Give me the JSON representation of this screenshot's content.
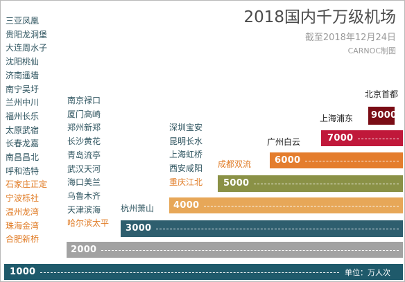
{
  "title": "2018国内千万级机场",
  "subtitle": "截至2018年12月24日",
  "credit": "CARNOC制图",
  "unit_label": "单位：万人次",
  "colors": {
    "bar_1000": "#1f5a6b",
    "bar_2000": "#a2a2a2",
    "bar_3000": "#2e5e6e",
    "bar_4000": "#e7a758",
    "bar_5000": "#8a9146",
    "bar_6000": "#e47d2d",
    "bar_7000": "#c0183a",
    "bar_9000": "#7a0d15",
    "text_dark": "#2f5560",
    "text_orange": "#e07b25",
    "text_black": "#222222"
  },
  "chart_data": {
    "type": "bar",
    "title": "2018国内千万级机场",
    "subtitle": "截至2018年12月24日",
    "unit": "单位：万人次",
    "tiers": [
      {
        "value": 1000,
        "label": "1000",
        "airports": [
          {
            "name": "三亚凤凰",
            "highlight": false
          },
          {
            "name": "贵阳龙洞堡",
            "highlight": false
          },
          {
            "name": "大连周水子",
            "highlight": false
          },
          {
            "name": "沈阳桃仙",
            "highlight": false
          },
          {
            "name": "济南遥墙",
            "highlight": false
          },
          {
            "name": "南宁吴圩",
            "highlight": false
          },
          {
            "name": "兰州中川",
            "highlight": false
          },
          {
            "name": "福州长乐",
            "highlight": false
          },
          {
            "name": "太原武宿",
            "highlight": false
          },
          {
            "name": "长春龙嘉",
            "highlight": false
          },
          {
            "name": "南昌昌北",
            "highlight": false
          },
          {
            "name": "呼和浩特",
            "highlight": false
          },
          {
            "name": "石家庄正定",
            "highlight": true
          },
          {
            "name": "宁波栎社",
            "highlight": true
          },
          {
            "name": "温州龙湾",
            "highlight": true
          },
          {
            "name": "珠海金湾",
            "highlight": true
          },
          {
            "name": "合肥新桥",
            "highlight": true
          }
        ]
      },
      {
        "value": 2000,
        "label": "2000",
        "airports": [
          {
            "name": "南京禄口",
            "highlight": false
          },
          {
            "name": "厦门高崎",
            "highlight": false
          },
          {
            "name": "郑州新郑",
            "highlight": false
          },
          {
            "name": "长沙黄花",
            "highlight": false
          },
          {
            "name": "青岛流亭",
            "highlight": false
          },
          {
            "name": "武汉天河",
            "highlight": false
          },
          {
            "name": "海口美兰",
            "highlight": false
          },
          {
            "name": "乌鲁木齐",
            "highlight": false
          },
          {
            "name": "天津滨海",
            "highlight": false
          },
          {
            "name": "哈尔滨太平",
            "highlight": true
          }
        ]
      },
      {
        "value": 3000,
        "label": "3000",
        "airports": [
          {
            "name": "杭州萧山",
            "highlight": false
          }
        ]
      },
      {
        "value": 4000,
        "label": "4000",
        "airports": [
          {
            "name": "深圳宝安",
            "highlight": false
          },
          {
            "name": "昆明长水",
            "highlight": false
          },
          {
            "name": "上海虹桥",
            "highlight": false
          },
          {
            "name": "西安咸阳",
            "highlight": false
          },
          {
            "name": "重庆江北",
            "highlight": true
          }
        ]
      },
      {
        "value": 5000,
        "label": "5000",
        "airports": [
          {
            "name": "成都双流",
            "highlight": true
          }
        ]
      },
      {
        "value": 6000,
        "label": "6000",
        "airports": [
          {
            "name": "广州白云",
            "highlight": false
          }
        ]
      },
      {
        "value": 7000,
        "label": "7000",
        "airports": [
          {
            "name": "上海浦东",
            "highlight": false
          }
        ]
      },
      {
        "value": 9000,
        "label": "9000",
        "airports": [
          {
            "name": "北京首都",
            "highlight": false
          }
        ]
      }
    ]
  }
}
